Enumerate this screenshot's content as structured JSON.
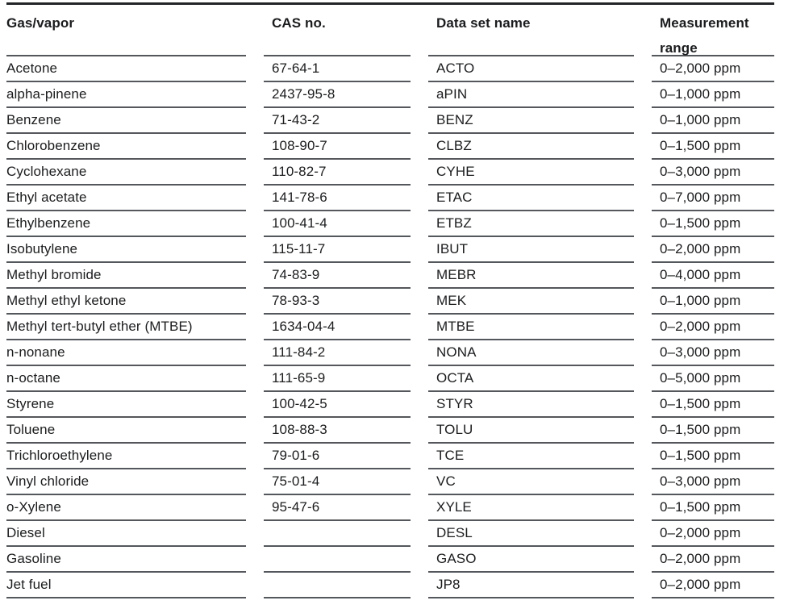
{
  "table": {
    "header": {
      "gas": "Gas/vapor",
      "cas": "CAS no.",
      "dataset": "Data set name",
      "range": "Measurement range"
    },
    "rows": [
      {
        "gas": "Acetone",
        "cas": "67-64-1",
        "dataset": "ACTO",
        "range": "0–2,000 ppm"
      },
      {
        "gas": "alpha-pinene",
        "cas": "2437-95-8",
        "dataset": "aPIN",
        "range": "0–1,000 ppm"
      },
      {
        "gas": "Benzene",
        "cas": "71-43-2",
        "dataset": "BENZ",
        "range": "0–1,000 ppm"
      },
      {
        "gas": "Chlorobenzene",
        "cas": "108-90-7",
        "dataset": "CLBZ",
        "range": "0–1,500 ppm"
      },
      {
        "gas": "Cyclohexane",
        "cas": "110-82-7",
        "dataset": "CYHE",
        "range": "0–3,000 ppm"
      },
      {
        "gas": "Ethyl acetate",
        "cas": "141-78-6",
        "dataset": "ETAC",
        "range": "0–7,000 ppm"
      },
      {
        "gas": "Ethylbenzene",
        "cas": "100-41-4",
        "dataset": "ETBZ",
        "range": "0–1,500 ppm"
      },
      {
        "gas": "Isobutylene",
        "cas": "115-11-7",
        "dataset": "IBUT",
        "range": "0–2,000 ppm"
      },
      {
        "gas": "Methyl bromide",
        "cas": "74-83-9",
        "dataset": "MEBR",
        "range": "0–4,000 ppm"
      },
      {
        "gas": "Methyl ethyl ketone",
        "cas": "78-93-3",
        "dataset": "MEK",
        "range": "0–1,000 ppm"
      },
      {
        "gas": "Methyl tert-butyl ether (MTBE)",
        "cas": "1634-04-4",
        "dataset": "MTBE",
        "range": "0–2,000 ppm"
      },
      {
        "gas": "n-nonane",
        "cas": "111-84-2",
        "dataset": "NONA",
        "range": "0–3,000 ppm"
      },
      {
        "gas": "n-octane",
        "cas": "111-65-9",
        "dataset": "OCTA",
        "range": "0–5,000 ppm"
      },
      {
        "gas": "Styrene",
        "cas": "100-42-5",
        "dataset": "STYR",
        "range": "0–1,500 ppm"
      },
      {
        "gas": "Toluene",
        "cas": "108-88-3",
        "dataset": "TOLU",
        "range": "0–1,500 ppm"
      },
      {
        "gas": "Trichloroethylene",
        "cas": "79-01-6",
        "dataset": "TCE",
        "range": "0–1,500 ppm"
      },
      {
        "gas": "Vinyl chloride",
        "cas": "75-01-4",
        "dataset": "VC",
        "range": "0–3,000 ppm"
      },
      {
        "gas": "o-Xylene",
        "cas": "95-47-6",
        "dataset": "XYLE",
        "range": "0–1,500 ppm"
      },
      {
        "gas": "Diesel",
        "cas": "",
        "dataset": "DESL",
        "range": "0–2,000 ppm"
      },
      {
        "gas": "Gasoline",
        "cas": "",
        "dataset": "GASO",
        "range": "0–2,000 ppm"
      },
      {
        "gas": "Jet fuel",
        "cas": "",
        "dataset": "JP8",
        "range": "0–2,000 ppm"
      }
    ]
  },
  "colors": {
    "top_rule": "#232428",
    "row_rule": "#54575b",
    "text": "#1b1c1e",
    "background": "#ffffff"
  }
}
